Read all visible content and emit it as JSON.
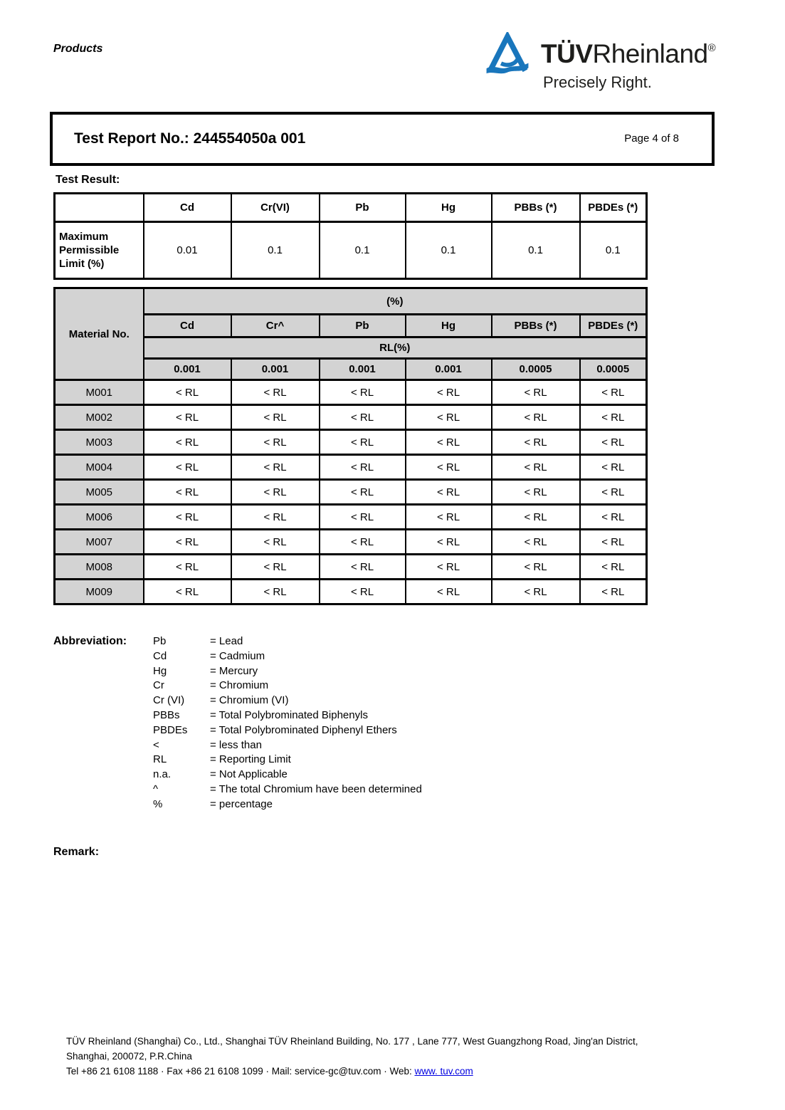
{
  "page": {
    "products_label": "Products",
    "page_label": "Page 4 of 8"
  },
  "logo": {
    "brand_bold": "TÜV",
    "brand_regular": "Rheinland",
    "registered_mark": "®",
    "tagline": "Precisely Right.",
    "brand_blue": "#1976bc"
  },
  "report_header": {
    "title": "Test Report No.: 244554050a 001"
  },
  "sections": {
    "test_result_label": "Test Result:",
    "abbreviation_label": "Abbreviation:",
    "remark_label": "Remark:"
  },
  "limits_table": {
    "columns": [
      "Cd",
      "Cr(VI)",
      "Pb",
      "Hg",
      "PBBs (*)",
      "PBDEs (*)"
    ],
    "row_label": "Maximum Permissible Limit (%)",
    "values": [
      "0.01",
      "0.1",
      "0.1",
      "0.1",
      "0.1",
      "0.1"
    ]
  },
  "results_table": {
    "corner_label": "Material No.",
    "percent_header": "(%)",
    "columns": [
      "Cd",
      "Cr^",
      "Pb",
      "Hg",
      "PBBs (*)",
      "PBDEs (*)"
    ],
    "rl_header": "RL(%)",
    "rl_values": [
      "0.001",
      "0.001",
      "0.001",
      "0.001",
      "0.0005",
      "0.0005"
    ],
    "header_bg": "#d3d3d3",
    "rows": [
      {
        "material": "M001",
        "values": [
          "< RL",
          "< RL",
          "< RL",
          "< RL",
          "< RL",
          "< RL"
        ]
      },
      {
        "material": "M002",
        "values": [
          "< RL",
          "< RL",
          "< RL",
          "< RL",
          "< RL",
          "< RL"
        ]
      },
      {
        "material": "M003",
        "values": [
          "< RL",
          "< RL",
          "< RL",
          "< RL",
          "< RL",
          "< RL"
        ]
      },
      {
        "material": "M004",
        "values": [
          "< RL",
          "< RL",
          "< RL",
          "< RL",
          "< RL",
          "< RL"
        ]
      },
      {
        "material": "M005",
        "values": [
          "< RL",
          "< RL",
          "< RL",
          "< RL",
          "< RL",
          "< RL"
        ]
      },
      {
        "material": "M006",
        "values": [
          "< RL",
          "< RL",
          "< RL",
          "< RL",
          "< RL",
          "< RL"
        ]
      },
      {
        "material": "M007",
        "values": [
          "< RL",
          "< RL",
          "< RL",
          "< RL",
          "< RL",
          "< RL"
        ]
      },
      {
        "material": "M008",
        "values": [
          "< RL",
          "< RL",
          "< RL",
          "< RL",
          "< RL",
          "< RL"
        ]
      },
      {
        "material": "M009",
        "values": [
          "< RL",
          "< RL",
          "< RL",
          "< RL",
          "< RL",
          "< RL"
        ]
      }
    ]
  },
  "abbreviations": [
    {
      "term": "Pb",
      "definition": "= Lead"
    },
    {
      "term": "Cd",
      "definition": "= Cadmium"
    },
    {
      "term": "Hg",
      "definition": "= Mercury"
    },
    {
      "term": "Cr",
      "definition": "= Chromium"
    },
    {
      "term": "Cr (VI)",
      "definition": "= Chromium (VI)"
    },
    {
      "term": "PBBs",
      "definition": "= Total Polybrominated Biphenyls"
    },
    {
      "term": "PBDEs",
      "definition": "= Total Polybrominated Diphenyl Ethers"
    },
    {
      "term": "<",
      "definition": "= less than"
    },
    {
      "term": "RL",
      "definition": "= Reporting Limit"
    },
    {
      "term": "n.a.",
      "definition": "= Not Applicable"
    },
    {
      "term": "^",
      "definition": "= The total Chromium have been determined"
    },
    {
      "term": "%",
      "definition": "= percentage"
    }
  ],
  "footer": {
    "line1": "TÜV Rheinland (Shanghai) Co., Ltd., Shanghai TÜV Rheinland Building, No. 177 , Lane 777, West Guangzhong Road, Jing'an District,",
    "line2": "Shanghai, 200072, P.R.China",
    "line3_prefix": "Tel +86 21 6108 1188 · Fax +86 21 6108 1099 · Mail: service-gc@tuv.com · Web: ",
    "link_label": "www. tuv.com",
    "link_color": "#0000e0"
  }
}
